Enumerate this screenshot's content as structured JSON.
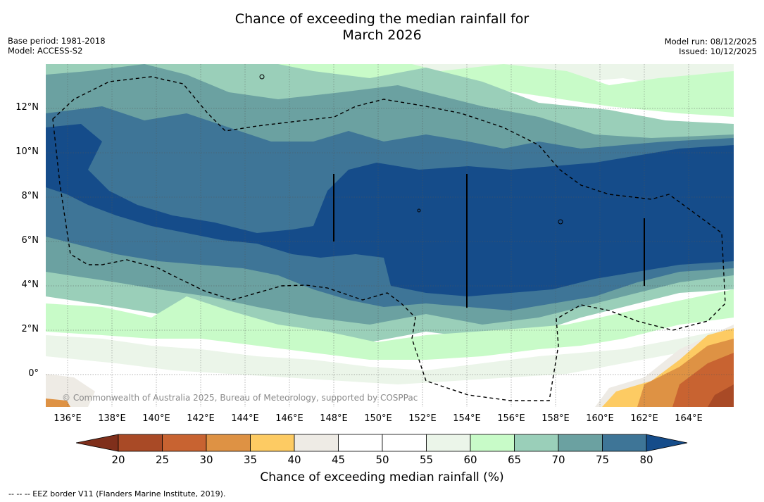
{
  "title_line1": "Chance of exceeding the median rainfall for",
  "title_line2": "March 2026",
  "base_period": "Base period: 1981-2018",
  "model": "Model: ACCESS-S2",
  "model_run": "Model run: 08/12/2025",
  "issued": "Issued: 10/12/2025",
  "credit": "© Commonwealth of Australia 2025, Bureau of Meteorology, supported by COSPPac",
  "lat_labels": [
    "12°N",
    "10°N",
    "8°N",
    "6°N",
    "4°N",
    "2°N",
    "0°"
  ],
  "lon_labels": [
    "136°E",
    "138°E",
    "140°E",
    "142°E",
    "144°E",
    "146°E",
    "148°E",
    "150°E",
    "152°E",
    "154°E",
    "156°E",
    "158°E",
    "160°E",
    "162°E",
    "164°E"
  ],
  "colorbar": {
    "title": "Chance of exceeding median rainfall (%)",
    "ticks": [
      "20",
      "25",
      "30",
      "35",
      "40",
      "45",
      "50",
      "55",
      "60",
      "65",
      "70",
      "75",
      "80"
    ],
    "colors": [
      "#7f2f1b",
      "#a94a26",
      "#c86331",
      "#de9244",
      "#fdcb63",
      "#eeebe5",
      "#ffffff",
      "#ffffff",
      "#ebf5e9",
      "#c8fbc8",
      "#9acfb9",
      "#6ba1a1",
      "#3e7597",
      "#154c8a"
    ]
  },
  "footer": "--  --  -- EEZ border V11 (Flanders Marine Institute, 2019)."
}
